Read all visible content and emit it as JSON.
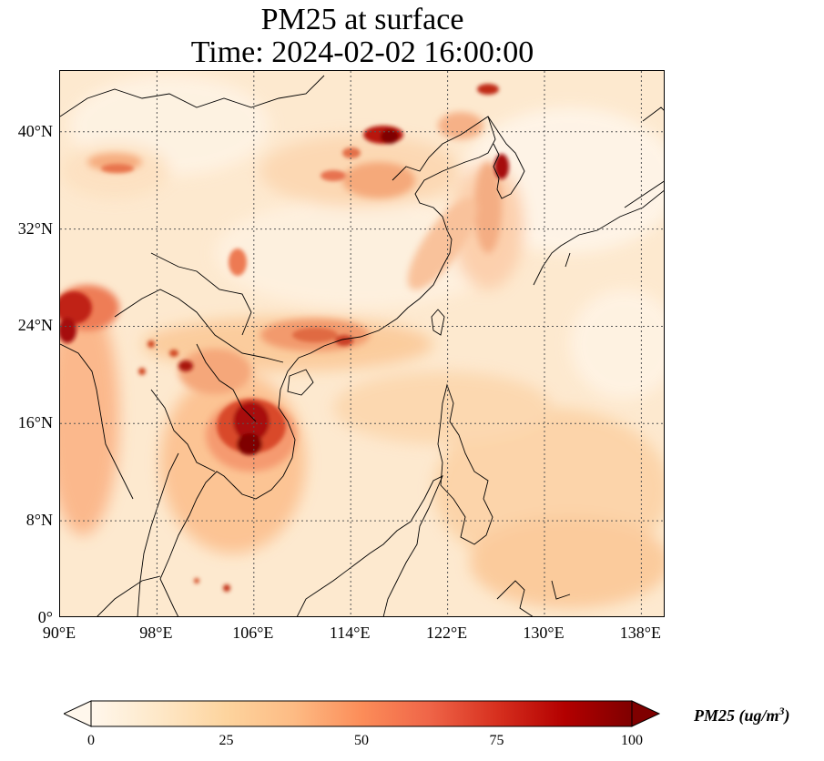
{
  "title_line1": "PM25 at surface",
  "title_line2": "Time: 2024-02-02 16:00:00",
  "axes": {
    "lon_range": [
      90,
      140
    ],
    "lat_range": [
      0,
      45
    ],
    "lon_ticks": [
      90,
      98,
      106,
      114,
      122,
      130,
      138
    ],
    "lat_ticks": [
      0,
      8,
      16,
      24,
      32,
      40
    ],
    "lon_labels": [
      "90°E",
      "98°E",
      "106°E",
      "114°E",
      "122°E",
      "130°E",
      "138°E"
    ],
    "lat_labels": [
      "0°",
      "8°N",
      "16°N",
      "24°N",
      "32°N",
      "40°N"
    ],
    "gridlines": "dotted"
  },
  "colorbar": {
    "label_base": "PM25 (ug/m",
    "label_exp": "3",
    "label_close": ")",
    "ticks": [
      "0",
      "25",
      "50",
      "75",
      "100"
    ],
    "range": [
      0,
      100
    ],
    "colormap": "OrRd",
    "extend": "both",
    "colors": [
      "#fff7ec",
      "#fee8c8",
      "#fdd49e",
      "#fdbb84",
      "#fc8d59",
      "#ef6548",
      "#d7301f",
      "#b30000",
      "#7f0000"
    ]
  },
  "colors": {
    "background_field": "#fde9cf",
    "coastline": "#000000",
    "grid": "#555555"
  }
}
